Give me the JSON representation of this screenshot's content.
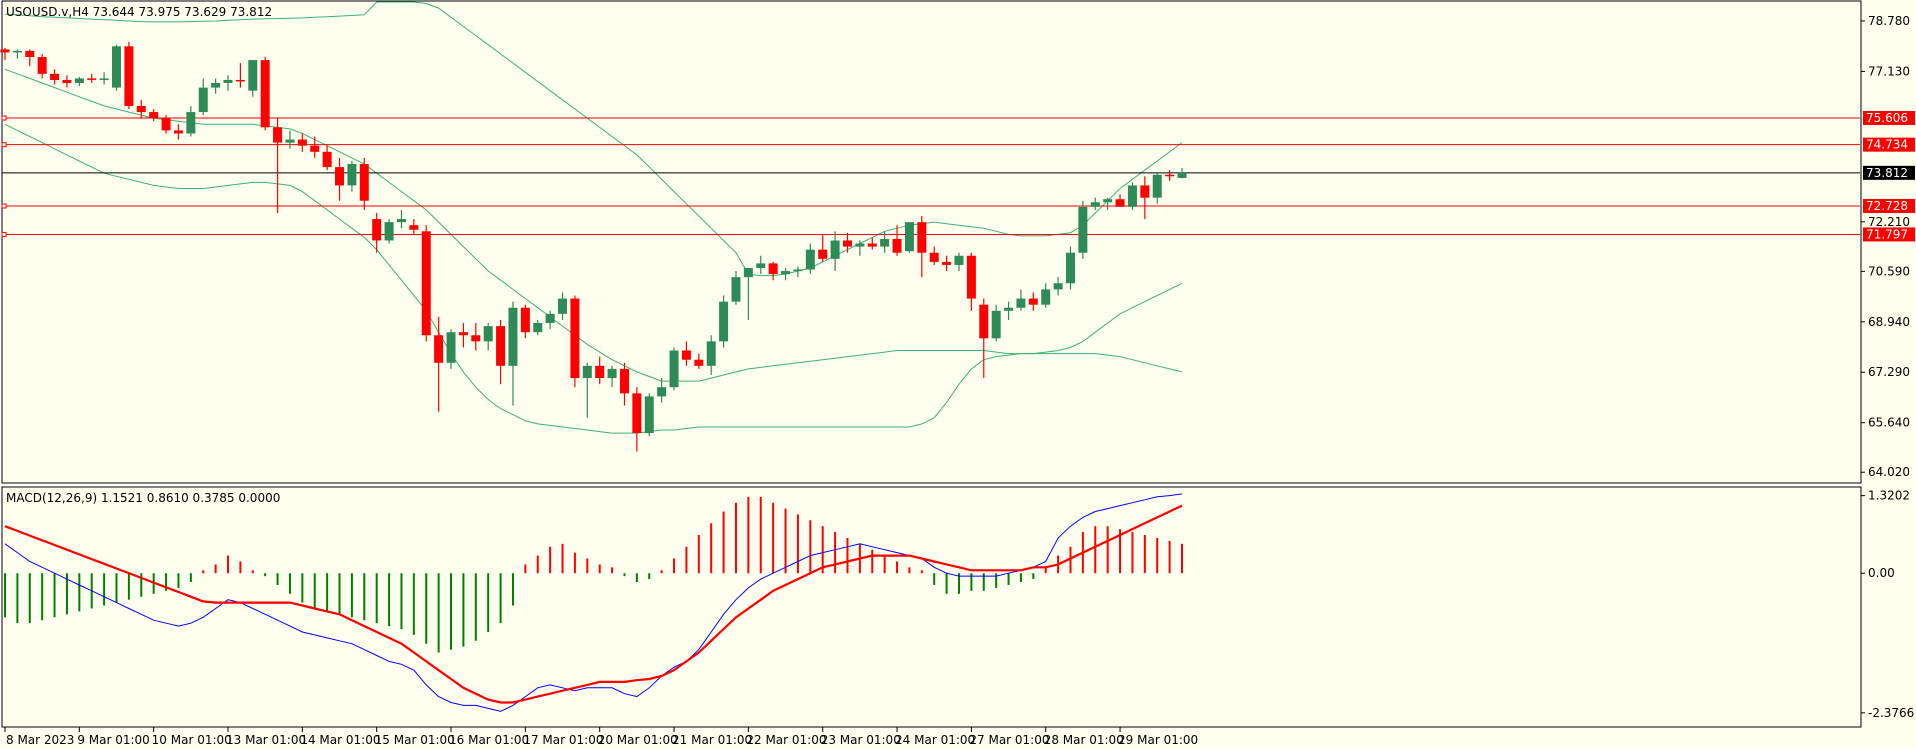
{
  "chart_data": {
    "type": "candlestick",
    "symbol_header": "USOUSD.v,H4  73.644 73.975 73.629 73.812",
    "price_axis": {
      "range": [
        63.7,
        79.4
      ],
      "ticks": [
        "78.780",
        "77.130",
        "72.210",
        "70.590",
        "68.940",
        "67.290",
        "65.640",
        "64.020"
      ]
    },
    "current_price": {
      "label": "73.812",
      "value": 73.812
    },
    "levels": [
      {
        "label": "75.606",
        "value": 75.606
      },
      {
        "label": "74.734",
        "value": 74.734
      },
      {
        "label": "72.728",
        "value": 72.728
      },
      {
        "label": "71.797",
        "value": 71.797
      }
    ],
    "x_labels": [
      "8 Mar 2023",
      "9 Mar 01:00",
      "10 Mar 01:00",
      "13 Mar 01:00",
      "14 Mar 01:00",
      "15 Mar 01:00",
      "16 Mar 01:00",
      "17 Mar 01:00",
      "20 Mar 01:00",
      "21 Mar 01:00",
      "22 Mar 01:00",
      "23 Mar 01:00",
      "24 Mar 01:00",
      "27 Mar 01:00",
      "28 Mar 01:00",
      "29 Mar 01:00"
    ],
    "candles": [
      [
        77.85,
        77.9,
        77.5,
        77.75
      ],
      [
        77.75,
        77.85,
        77.55,
        77.8
      ],
      [
        77.8,
        77.85,
        77.3,
        77.6
      ],
      [
        77.6,
        77.7,
        76.9,
        77.05
      ],
      [
        77.05,
        77.2,
        76.7,
        76.85
      ],
      [
        76.85,
        77.0,
        76.6,
        76.75
      ],
      [
        76.75,
        76.95,
        76.65,
        76.9
      ],
      [
        76.9,
        77.05,
        76.75,
        76.85
      ],
      [
        76.85,
        77.1,
        76.7,
        76.9
      ],
      [
        76.6,
        78.0,
        76.5,
        77.95
      ],
      [
        77.95,
        78.1,
        75.9,
        76.0
      ],
      [
        76.0,
        76.2,
        75.6,
        75.8
      ],
      [
        75.8,
        75.9,
        75.5,
        75.6
      ],
      [
        75.6,
        75.7,
        75.1,
        75.2
      ],
      [
        75.2,
        75.4,
        74.9,
        75.1
      ],
      [
        75.1,
        76.0,
        75.0,
        75.8
      ],
      [
        75.8,
        76.9,
        75.7,
        76.6
      ],
      [
        76.6,
        76.9,
        76.4,
        76.75
      ],
      [
        76.75,
        77.0,
        76.5,
        76.85
      ],
      [
        76.85,
        77.4,
        76.6,
        76.8
      ],
      [
        76.5,
        77.5,
        76.3,
        77.5
      ],
      [
        77.5,
        77.6,
        75.2,
        75.3
      ],
      [
        75.3,
        75.6,
        72.5,
        74.8
      ],
      [
        74.8,
        75.2,
        74.6,
        74.9
      ],
      [
        74.9,
        75.1,
        74.5,
        74.7
      ],
      [
        74.7,
        75.0,
        74.3,
        74.5
      ],
      [
        74.5,
        74.7,
        73.9,
        74.0
      ],
      [
        74.0,
        74.3,
        72.9,
        73.4
      ],
      [
        73.4,
        74.2,
        73.2,
        74.1
      ],
      [
        74.1,
        74.3,
        72.6,
        72.9
      ],
      [
        72.3,
        72.5,
        71.2,
        71.6
      ],
      [
        71.6,
        72.3,
        71.5,
        72.2
      ],
      [
        72.2,
        72.6,
        72.0,
        72.3
      ],
      [
        72.1,
        72.3,
        71.8,
        71.95
      ],
      [
        71.9,
        72.1,
        68.3,
        68.5
      ],
      [
        68.5,
        69.1,
        66.0,
        67.6
      ],
      [
        67.6,
        68.7,
        67.4,
        68.6
      ],
      [
        68.6,
        68.9,
        68.1,
        68.5
      ],
      [
        68.5,
        68.9,
        68.0,
        68.3
      ],
      [
        68.3,
        68.9,
        68.0,
        68.8
      ],
      [
        68.8,
        69.0,
        66.9,
        67.5
      ],
      [
        67.5,
        69.6,
        66.2,
        69.4
      ],
      [
        69.4,
        69.5,
        68.4,
        68.6
      ],
      [
        68.6,
        69.0,
        68.5,
        68.9
      ],
      [
        68.9,
        69.3,
        68.7,
        69.2
      ],
      [
        69.2,
        69.9,
        69.0,
        69.7
      ],
      [
        69.7,
        69.8,
        66.8,
        67.1
      ],
      [
        67.1,
        67.6,
        65.8,
        67.5
      ],
      [
        67.5,
        67.8,
        66.9,
        67.1
      ],
      [
        67.1,
        67.5,
        66.8,
        67.4
      ],
      [
        67.4,
        67.6,
        66.2,
        66.6
      ],
      [
        66.6,
        66.8,
        64.7,
        65.3
      ],
      [
        65.3,
        66.6,
        65.2,
        66.5
      ],
      [
        66.5,
        67.1,
        66.3,
        66.8
      ],
      [
        66.8,
        68.1,
        66.7,
        68.0
      ],
      [
        68.0,
        68.3,
        67.5,
        67.7
      ],
      [
        67.7,
        67.9,
        67.4,
        67.5
      ],
      [
        67.5,
        68.5,
        67.2,
        68.3
      ],
      [
        68.3,
        69.8,
        68.1,
        69.6
      ],
      [
        69.6,
        70.6,
        69.5,
        70.4
      ],
      [
        70.4,
        70.7,
        69.0,
        70.7
      ],
      [
        70.7,
        71.1,
        70.5,
        70.85
      ],
      [
        70.85,
        70.9,
        70.3,
        70.5
      ],
      [
        70.5,
        70.7,
        70.3,
        70.6
      ],
      [
        70.6,
        70.75,
        70.4,
        70.65
      ],
      [
        70.65,
        71.5,
        70.5,
        71.3
      ],
      [
        71.3,
        71.8,
        70.9,
        71.0
      ],
      [
        71.0,
        71.9,
        70.6,
        71.6
      ],
      [
        71.6,
        71.85,
        71.2,
        71.4
      ],
      [
        71.4,
        71.6,
        71.1,
        71.5
      ],
      [
        71.5,
        71.7,
        71.3,
        71.4
      ],
      [
        71.4,
        71.9,
        71.2,
        71.65
      ],
      [
        71.65,
        72.1,
        71.1,
        71.2
      ],
      [
        71.25,
        72.1,
        71.2,
        72.2
      ],
      [
        72.2,
        72.4,
        70.4,
        71.2
      ],
      [
        71.2,
        71.4,
        70.8,
        70.9
      ],
      [
        70.9,
        71.1,
        70.6,
        70.8
      ],
      [
        70.8,
        71.2,
        70.6,
        71.1
      ],
      [
        71.1,
        71.2,
        69.3,
        69.7
      ],
      [
        69.5,
        69.7,
        67.1,
        68.4
      ],
      [
        68.4,
        69.5,
        68.3,
        69.3
      ],
      [
        69.3,
        69.6,
        69.0,
        69.4
      ],
      [
        69.4,
        70.0,
        69.3,
        69.7
      ],
      [
        69.7,
        69.9,
        69.3,
        69.5
      ],
      [
        69.5,
        70.2,
        69.4,
        70.0
      ],
      [
        70.0,
        70.4,
        69.8,
        70.2
      ],
      [
        70.2,
        71.4,
        70.0,
        71.2
      ],
      [
        71.2,
        72.9,
        71.0,
        72.7
      ],
      [
        72.7,
        73.0,
        72.6,
        72.85
      ],
      [
        72.85,
        73.0,
        72.6,
        72.95
      ],
      [
        72.95,
        73.1,
        72.8,
        72.7
      ],
      [
        72.7,
        73.5,
        72.6,
        73.4
      ],
      [
        73.4,
        73.7,
        72.3,
        73.0
      ],
      [
        73.0,
        73.8,
        72.8,
        73.75
      ],
      [
        73.75,
        73.9,
        73.55,
        73.7
      ],
      [
        73.644,
        73.975,
        73.629,
        73.812
      ]
    ],
    "bollinger": {
      "upper": [
        79.0,
        78.98,
        78.95,
        78.92,
        78.9,
        78.88,
        78.86,
        78.84,
        78.82,
        78.8,
        78.78,
        78.76,
        78.75,
        78.75,
        78.75,
        78.76,
        78.77,
        78.78,
        78.8,
        78.82,
        78.84,
        78.85,
        78.86,
        78.87,
        78.88,
        78.9,
        78.92,
        78.94,
        78.96,
        78.98,
        79.4,
        79.4,
        79.4,
        79.4,
        79.35,
        79.2,
        78.9,
        78.6,
        78.3,
        78.0,
        77.7,
        77.4,
        77.1,
        76.8,
        76.5,
        76.2,
        75.9,
        75.6,
        75.3,
        75.0,
        74.7,
        74.4,
        74.0,
        73.6,
        73.2,
        72.8,
        72.4,
        72.0,
        71.6,
        71.2,
        70.5,
        70.45,
        70.45,
        70.5,
        70.6,
        70.7,
        70.9,
        71.1,
        71.3,
        71.5,
        71.7,
        71.9,
        72.0,
        72.1,
        72.15,
        72.2,
        72.15,
        72.1,
        72.05,
        72.0,
        71.9,
        71.8,
        71.75,
        71.75,
        71.75,
        71.8,
        71.85,
        72.1,
        72.5,
        72.9,
        73.3,
        73.6,
        73.9,
        74.2,
        74.5,
        74.8
      ],
      "middle": [
        77.2,
        77.05,
        76.9,
        76.75,
        76.6,
        76.45,
        76.3,
        76.15,
        76.0,
        75.9,
        75.8,
        75.7,
        75.6,
        75.55,
        75.5,
        75.45,
        75.4,
        75.4,
        75.4,
        75.4,
        75.4,
        75.35,
        75.3,
        75.25,
        75.1,
        74.9,
        74.7,
        74.5,
        74.3,
        74.1,
        73.8,
        73.5,
        73.2,
        72.9,
        72.6,
        72.2,
        71.8,
        71.4,
        71.0,
        70.6,
        70.3,
        70.0,
        69.7,
        69.4,
        69.1,
        68.8,
        68.5,
        68.2,
        67.95,
        67.7,
        67.5,
        67.3,
        67.15,
        67.0,
        67.0,
        67.0,
        67.0,
        67.1,
        67.2,
        67.3,
        67.4,
        67.45,
        67.5,
        67.55,
        67.6,
        67.65,
        67.7,
        67.75,
        67.8,
        67.85,
        67.9,
        67.95,
        68.0,
        68.0,
        68.0,
        68.0,
        68.0,
        68.0,
        68.0,
        68.0,
        67.95,
        67.9,
        67.9,
        67.9,
        67.95,
        68.0,
        68.1,
        68.3,
        68.6,
        68.9,
        69.2,
        69.4,
        69.6,
        69.8,
        70.0,
        70.2
      ],
      "lower": [
        75.4,
        75.2,
        75.0,
        74.8,
        74.6,
        74.4,
        74.2,
        74.0,
        73.8,
        73.7,
        73.6,
        73.5,
        73.4,
        73.35,
        73.3,
        73.3,
        73.3,
        73.35,
        73.4,
        73.45,
        73.5,
        73.5,
        73.45,
        73.4,
        73.2,
        72.9,
        72.6,
        72.3,
        72.0,
        71.7,
        71.3,
        70.8,
        70.3,
        69.8,
        69.3,
        68.6,
        67.9,
        67.3,
        66.8,
        66.4,
        66.1,
        65.9,
        65.7,
        65.6,
        65.55,
        65.5,
        65.45,
        65.4,
        65.35,
        65.3,
        65.3,
        65.3,
        65.35,
        65.4,
        65.4,
        65.45,
        65.5,
        65.5,
        65.5,
        65.5,
        65.5,
        65.5,
        65.5,
        65.5,
        65.5,
        65.5,
        65.5,
        65.5,
        65.5,
        65.5,
        65.5,
        65.5,
        65.5,
        65.5,
        65.6,
        65.8,
        66.3,
        66.9,
        67.4,
        67.7,
        67.8,
        67.85,
        67.9,
        67.9,
        67.9,
        67.9,
        67.9,
        67.9,
        67.9,
        67.85,
        67.8,
        67.7,
        67.6,
        67.5,
        67.4,
        67.3
      ]
    },
    "macd": {
      "header": "MACD(12,26,9) 1.1521 0.8610 0.3785 0.0000",
      "ticks": [
        "1.3202",
        "0.00",
        "-2.3766"
      ],
      "range": [
        -2.6,
        1.45
      ],
      "histogram": [
        -0.75,
        -0.85,
        -0.85,
        -0.8,
        -0.75,
        -0.7,
        -0.65,
        -0.6,
        -0.55,
        -0.5,
        -0.45,
        -0.4,
        -0.35,
        -0.3,
        -0.25,
        -0.15,
        0.05,
        0.15,
        0.3,
        0.2,
        0.05,
        -0.05,
        -0.2,
        -0.35,
        -0.5,
        -0.6,
        -0.65,
        -0.7,
        -0.75,
        -0.8,
        -0.85,
        -0.9,
        -0.95,
        -1.05,
        -1.2,
        -1.35,
        -1.3,
        -1.25,
        -1.15,
        -1.0,
        -0.85,
        -0.55,
        0.15,
        0.3,
        0.45,
        0.5,
        0.35,
        0.25,
        0.15,
        0.1,
        -0.05,
        -0.15,
        -0.1,
        0.05,
        0.25,
        0.45,
        0.65,
        0.85,
        1.05,
        1.2,
        1.3,
        1.3,
        1.2,
        1.1,
        1.0,
        0.9,
        0.8,
        0.7,
        0.6,
        0.5,
        0.4,
        0.3,
        0.2,
        0.1,
        0.05,
        -0.2,
        -0.35,
        -0.35,
        -0.3,
        -0.3,
        -0.25,
        -0.2,
        -0.15,
        -0.1,
        0.1,
        0.3,
        0.45,
        0.7,
        0.8,
        0.8,
        0.75,
        0.7,
        0.65,
        0.6,
        0.55,
        0.5
      ],
      "macd_line": [
        0.5,
        0.35,
        0.2,
        0.1,
        0.0,
        -0.1,
        -0.2,
        -0.3,
        -0.4,
        -0.5,
        -0.6,
        -0.7,
        -0.8,
        -0.85,
        -0.9,
        -0.85,
        -0.75,
        -0.6,
        -0.45,
        -0.5,
        -0.6,
        -0.7,
        -0.8,
        -0.9,
        -1.0,
        -1.05,
        -1.1,
        -1.15,
        -1.2,
        -1.3,
        -1.4,
        -1.5,
        -1.55,
        -1.65,
        -1.9,
        -2.1,
        -2.2,
        -2.25,
        -2.25,
        -2.3,
        -2.35,
        -2.25,
        -2.1,
        -1.95,
        -1.9,
        -1.95,
        -2.0,
        -1.95,
        -1.95,
        -1.95,
        -2.05,
        -2.1,
        -1.95,
        -1.75,
        -1.6,
        -1.5,
        -1.3,
        -1.0,
        -0.7,
        -0.45,
        -0.25,
        -0.1,
        0.0,
        0.1,
        0.2,
        0.3,
        0.35,
        0.4,
        0.45,
        0.5,
        0.45,
        0.4,
        0.35,
        0.3,
        0.25,
        0.1,
        0.0,
        -0.05,
        -0.05,
        -0.05,
        -0.05,
        0.0,
        0.05,
        0.1,
        0.2,
        0.6,
        0.8,
        0.95,
        1.05,
        1.1,
        1.15,
        1.2,
        1.25,
        1.3,
        1.32,
        1.35
      ],
      "signal_line": [
        0.8,
        0.72,
        0.64,
        0.56,
        0.48,
        0.4,
        0.32,
        0.24,
        0.16,
        0.08,
        0.0,
        -0.08,
        -0.16,
        -0.24,
        -0.32,
        -0.4,
        -0.48,
        -0.5,
        -0.5,
        -0.5,
        -0.5,
        -0.5,
        -0.5,
        -0.5,
        -0.55,
        -0.6,
        -0.65,
        -0.7,
        -0.8,
        -0.9,
        -1.0,
        -1.1,
        -1.2,
        -1.35,
        -1.5,
        -1.65,
        -1.8,
        -1.95,
        -2.05,
        -2.15,
        -2.2,
        -2.2,
        -2.15,
        -2.1,
        -2.05,
        -2.0,
        -1.95,
        -1.9,
        -1.85,
        -1.85,
        -1.85,
        -1.82,
        -1.8,
        -1.75,
        -1.65,
        -1.5,
        -1.35,
        -1.15,
        -0.95,
        -0.75,
        -0.6,
        -0.45,
        -0.3,
        -0.2,
        -0.1,
        0.0,
        0.1,
        0.15,
        0.2,
        0.25,
        0.3,
        0.3,
        0.3,
        0.3,
        0.25,
        0.2,
        0.15,
        0.1,
        0.05,
        0.05,
        0.05,
        0.05,
        0.05,
        0.1,
        0.1,
        0.15,
        0.25,
        0.35,
        0.45,
        0.55,
        0.65,
        0.75,
        0.85,
        0.95,
        1.05,
        1.15
      ]
    },
    "colors": {
      "background": "#fffff0",
      "bull": "#2e8b57",
      "bear": "#ff0000",
      "bands": "#3cb371",
      "levels": "#ff0000",
      "current": "#000000",
      "macd": "#0000ff",
      "signal": "#ff0000"
    }
  }
}
